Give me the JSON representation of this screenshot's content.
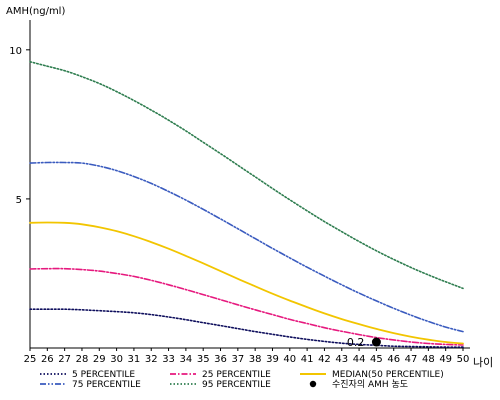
{
  "chart_data": {
    "type": "line",
    "ylabel": "AMH(ng/ml)",
    "xlabel": "나이",
    "x": [
      25,
      26,
      27,
      28,
      29,
      30,
      31,
      32,
      33,
      34,
      35,
      36,
      37,
      38,
      39,
      40,
      41,
      42,
      43,
      44,
      45,
      46,
      47,
      48,
      49,
      50
    ],
    "xlim": [
      25,
      50
    ],
    "ylim": [
      0,
      11
    ],
    "yticks": [
      5,
      10
    ],
    "grid": false,
    "legend_position": "bottom",
    "series": [
      {
        "name": "5 PERCENTILE",
        "color": "#0d0d5c",
        "style": "dotted",
        "values": [
          1.3,
          1.3,
          1.3,
          1.28,
          1.25,
          1.22,
          1.18,
          1.12,
          1.04,
          0.95,
          0.85,
          0.75,
          0.65,
          0.55,
          0.46,
          0.37,
          0.29,
          0.22,
          0.16,
          0.12,
          0.09,
          0.06,
          0.05,
          0.04,
          0.03,
          0.03
        ]
      },
      {
        "name": "25 PERCENTILE",
        "color": "#e6197e",
        "style": "dashdot",
        "values": [
          2.65,
          2.66,
          2.66,
          2.63,
          2.58,
          2.5,
          2.4,
          2.27,
          2.12,
          1.96,
          1.79,
          1.62,
          1.45,
          1.28,
          1.12,
          0.96,
          0.82,
          0.68,
          0.56,
          0.45,
          0.35,
          0.27,
          0.2,
          0.15,
          0.12,
          0.1
        ]
      },
      {
        "name": "MEDIAN(50 PERCENTILE)",
        "color": "#f2c500",
        "style": "solid",
        "values": [
          4.2,
          4.21,
          4.2,
          4.15,
          4.05,
          3.92,
          3.75,
          3.55,
          3.33,
          3.09,
          2.84,
          2.58,
          2.32,
          2.07,
          1.82,
          1.59,
          1.37,
          1.16,
          0.97,
          0.8,
          0.64,
          0.5,
          0.38,
          0.28,
          0.2,
          0.15
        ]
      },
      {
        "name": "75 PERCENTILE",
        "color": "#3a5bbf",
        "style": "dashdotdot",
        "values": [
          6.2,
          6.22,
          6.22,
          6.2,
          6.1,
          5.95,
          5.75,
          5.52,
          5.25,
          4.96,
          4.65,
          4.33,
          4.0,
          3.67,
          3.34,
          3.02,
          2.71,
          2.41,
          2.12,
          1.84,
          1.58,
          1.33,
          1.1,
          0.89,
          0.7,
          0.55
        ]
      },
      {
        "name": "95 PERCENTILE",
        "color": "#2e7d4f",
        "style": "dotted",
        "values": [
          9.6,
          9.45,
          9.3,
          9.1,
          8.87,
          8.6,
          8.3,
          7.98,
          7.64,
          7.28,
          6.9,
          6.52,
          6.13,
          5.74,
          5.35,
          4.97,
          4.6,
          4.24,
          3.9,
          3.57,
          3.26,
          2.97,
          2.7,
          2.45,
          2.22,
          2.0
        ]
      }
    ],
    "points": [
      {
        "name": "수진자의 AMH 농도",
        "x": 45,
        "y": 0.2,
        "label": "0.2",
        "color": "#000000"
      }
    ]
  }
}
